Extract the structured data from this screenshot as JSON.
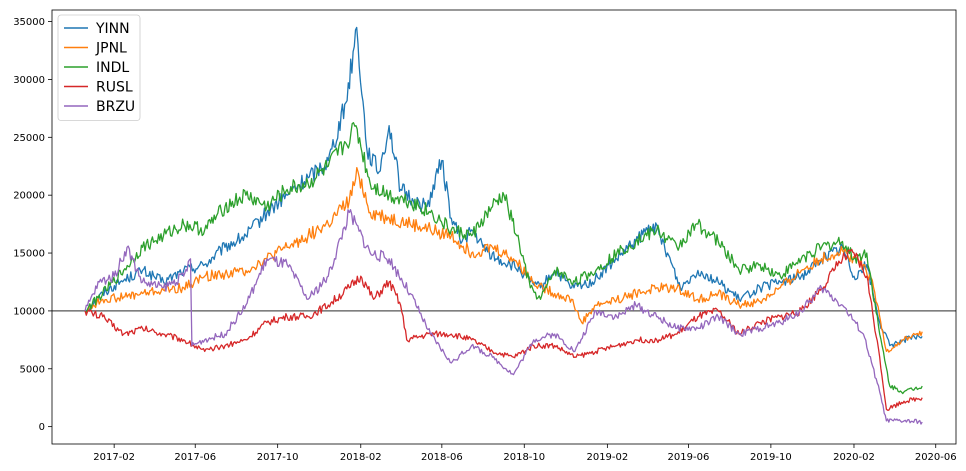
{
  "chart_data": {
    "type": "line",
    "title": "",
    "xlabel": "",
    "ylabel": "",
    "ylim": [
      -1500,
      36000
    ],
    "xlim": [
      "2016-11-01",
      "2020-07-01"
    ],
    "yticks": [
      0,
      5000,
      10000,
      15000,
      20000,
      25000,
      30000,
      35000
    ],
    "xticks": [
      "2017-02",
      "2017-06",
      "2017-10",
      "2018-02",
      "2018-06",
      "2018-10",
      "2019-02",
      "2019-06",
      "2019-10",
      "2020-02",
      "2020-06"
    ],
    "grid": false,
    "legend": "upper left",
    "reference_line": 10000,
    "reference_color": "#555555",
    "series": [
      {
        "name": "YINN",
        "color": "#1f77b4",
        "points": [
          [
            "2016-12-20",
            10000
          ],
          [
            "2017-01-15",
            11500
          ],
          [
            "2017-02-10",
            12500
          ],
          [
            "2017-03-15",
            13500
          ],
          [
            "2017-04-15",
            12500
          ],
          [
            "2017-05-15",
            13500
          ],
          [
            "2017-06-15",
            14000
          ],
          [
            "2017-07-15",
            15500
          ],
          [
            "2017-08-15",
            16500
          ],
          [
            "2017-09-15",
            18500
          ],
          [
            "2017-10-15",
            20000
          ],
          [
            "2017-11-15",
            21500
          ],
          [
            "2017-12-15",
            23000
          ],
          [
            "2018-01-10",
            28000
          ],
          [
            "2018-01-26",
            34500
          ],
          [
            "2018-02-10",
            24000
          ],
          [
            "2018-02-28",
            22000
          ],
          [
            "2018-03-15",
            26000
          ],
          [
            "2018-04-01",
            20500
          ],
          [
            "2018-04-20",
            19500
          ],
          [
            "2018-05-10",
            19000
          ],
          [
            "2018-06-01",
            23000
          ],
          [
            "2018-06-15",
            18000
          ],
          [
            "2018-07-01",
            16000
          ],
          [
            "2018-07-15",
            17000
          ],
          [
            "2018-08-01",
            15500
          ],
          [
            "2018-08-20",
            14500
          ],
          [
            "2018-09-10",
            14000
          ],
          [
            "2018-09-25",
            13500
          ],
          [
            "2018-10-10",
            12500
          ],
          [
            "2018-10-25",
            12000
          ],
          [
            "2018-11-15",
            13500
          ],
          [
            "2018-12-10",
            12000
          ],
          [
            "2019-01-10",
            12500
          ],
          [
            "2019-02-15",
            14500
          ],
          [
            "2019-03-15",
            16000
          ],
          [
            "2019-04-10",
            17500
          ],
          [
            "2019-05-01",
            15000
          ],
          [
            "2019-05-20",
            12000
          ],
          [
            "2019-06-15",
            13500
          ],
          [
            "2019-07-15",
            12500
          ],
          [
            "2019-08-15",
            11000
          ],
          [
            "2019-09-15",
            12000
          ],
          [
            "2019-10-15",
            12500
          ],
          [
            "2019-11-15",
            13000
          ],
          [
            "2019-12-15",
            14500
          ],
          [
            "2020-01-15",
            15500
          ],
          [
            "2020-02-01",
            13000
          ],
          [
            "2020-02-20",
            14000
          ],
          [
            "2020-03-10",
            9000
          ],
          [
            "2020-03-25",
            7000
          ],
          [
            "2020-04-15",
            7500
          ],
          [
            "2020-05-12",
            7800
          ]
        ]
      },
      {
        "name": "JPNL",
        "color": "#ff7f0e",
        "points": [
          [
            "2016-12-20",
            10000
          ],
          [
            "2017-01-15",
            11000
          ],
          [
            "2017-02-15",
            11200
          ],
          [
            "2017-03-15",
            11500
          ],
          [
            "2017-04-15",
            11800
          ],
          [
            "2017-05-15",
            12000
          ],
          [
            "2017-06-15",
            13000
          ],
          [
            "2017-07-15",
            13200
          ],
          [
            "2017-08-15",
            13500
          ],
          [
            "2017-09-15",
            14500
          ],
          [
            "2017-10-15",
            15500
          ],
          [
            "2017-11-15",
            16500
          ],
          [
            "2017-12-15",
            17500
          ],
          [
            "2018-01-15",
            19500
          ],
          [
            "2018-01-28",
            22000
          ],
          [
            "2018-02-15",
            18500
          ],
          [
            "2018-03-15",
            18000
          ],
          [
            "2018-04-15",
            17500
          ],
          [
            "2018-05-15",
            17000
          ],
          [
            "2018-06-15",
            16500
          ],
          [
            "2018-07-15",
            15000
          ],
          [
            "2018-08-15",
            15500
          ],
          [
            "2018-09-15",
            14500
          ],
          [
            "2018-10-15",
            12500
          ],
          [
            "2018-11-15",
            11500
          ],
          [
            "2018-12-10",
            11000
          ],
          [
            "2018-12-25",
            9000
          ],
          [
            "2019-01-15",
            10500
          ],
          [
            "2019-02-15",
            11000
          ],
          [
            "2019-03-15",
            11500
          ],
          [
            "2019-04-15",
            12000
          ],
          [
            "2019-05-15",
            12000
          ],
          [
            "2019-06-15",
            11000
          ],
          [
            "2019-07-15",
            11500
          ],
          [
            "2019-08-15",
            10500
          ],
          [
            "2019-09-15",
            10800
          ],
          [
            "2019-10-15",
            12000
          ],
          [
            "2019-11-15",
            13500
          ],
          [
            "2019-12-15",
            14500
          ],
          [
            "2020-01-15",
            15200
          ],
          [
            "2020-02-15",
            14000
          ],
          [
            "2020-03-01",
            12000
          ],
          [
            "2020-03-20",
            6500
          ],
          [
            "2020-04-15",
            7500
          ],
          [
            "2020-05-12",
            8200
          ]
        ]
      },
      {
        "name": "INDL",
        "color": "#2ca02c",
        "points": [
          [
            "2016-12-20",
            10000
          ],
          [
            "2017-01-15",
            11500
          ],
          [
            "2017-02-15",
            13500
          ],
          [
            "2017-03-15",
            15500
          ],
          [
            "2017-04-15",
            16500
          ],
          [
            "2017-05-15",
            17500
          ],
          [
            "2017-06-15",
            17000
          ],
          [
            "2017-07-15",
            19000
          ],
          [
            "2017-08-15",
            20000
          ],
          [
            "2017-09-15",
            19000
          ],
          [
            "2017-10-15",
            20500
          ],
          [
            "2017-11-15",
            21000
          ],
          [
            "2017-12-15",
            22500
          ],
          [
            "2018-01-10",
            24500
          ],
          [
            "2018-01-25",
            26000
          ],
          [
            "2018-02-15",
            21000
          ],
          [
            "2018-03-15",
            20000
          ],
          [
            "2018-04-15",
            19500
          ],
          [
            "2018-05-15",
            18500
          ],
          [
            "2018-06-15",
            17000
          ],
          [
            "2018-07-15",
            16500
          ],
          [
            "2018-08-15",
            19000
          ],
          [
            "2018-09-01",
            20000
          ],
          [
            "2018-09-20",
            16500
          ],
          [
            "2018-10-10",
            12000
          ],
          [
            "2018-10-25",
            11000
          ],
          [
            "2018-11-15",
            13500
          ],
          [
            "2018-12-15",
            12500
          ],
          [
            "2019-01-15",
            13500
          ],
          [
            "2019-02-15",
            15000
          ],
          [
            "2019-03-15",
            16000
          ],
          [
            "2019-04-15",
            17000
          ],
          [
            "2019-05-15",
            15500
          ],
          [
            "2019-06-15",
            17500
          ],
          [
            "2019-07-15",
            16000
          ],
          [
            "2019-08-15",
            13500
          ],
          [
            "2019-09-15",
            14000
          ],
          [
            "2019-10-15",
            13000
          ],
          [
            "2019-11-15",
            14500
          ],
          [
            "2019-12-15",
            15500
          ],
          [
            "2020-01-15",
            16000
          ],
          [
            "2020-02-01",
            14500
          ],
          [
            "2020-02-20",
            15000
          ],
          [
            "2020-03-10",
            8000
          ],
          [
            "2020-03-25",
            3500
          ],
          [
            "2020-04-15",
            3000
          ],
          [
            "2020-05-12",
            3500
          ]
        ]
      },
      {
        "name": "RUSL",
        "color": "#d62728",
        "points": [
          [
            "2016-12-20",
            10000
          ],
          [
            "2017-01-15",
            9500
          ],
          [
            "2017-02-15",
            8000
          ],
          [
            "2017-03-15",
            8500
          ],
          [
            "2017-04-15",
            8000
          ],
          [
            "2017-05-15",
            7500
          ],
          [
            "2017-06-15",
            6500
          ],
          [
            "2017-07-15",
            7000
          ],
          [
            "2017-08-15",
            7500
          ],
          [
            "2017-09-15",
            9000
          ],
          [
            "2017-10-15",
            9500
          ],
          [
            "2017-11-15",
            9500
          ],
          [
            "2017-12-15",
            10500
          ],
          [
            "2018-01-15",
            12000
          ],
          [
            "2018-02-01",
            13000
          ],
          [
            "2018-02-20",
            11000
          ],
          [
            "2018-03-15",
            12500
          ],
          [
            "2018-04-01",
            10500
          ],
          [
            "2018-04-10",
            7500
          ],
          [
            "2018-05-15",
            8000
          ],
          [
            "2018-06-15",
            8000
          ],
          [
            "2018-07-15",
            7500
          ],
          [
            "2018-08-15",
            6500
          ],
          [
            "2018-09-15",
            6000
          ],
          [
            "2018-10-15",
            7000
          ],
          [
            "2018-11-15",
            7000
          ],
          [
            "2018-12-15",
            6000
          ],
          [
            "2019-01-15",
            6500
          ],
          [
            "2019-02-15",
            7000
          ],
          [
            "2019-03-15",
            7500
          ],
          [
            "2019-04-15",
            7500
          ],
          [
            "2019-05-15",
            8000
          ],
          [
            "2019-06-15",
            9500
          ],
          [
            "2019-07-15",
            10000
          ],
          [
            "2019-08-15",
            8000
          ],
          [
            "2019-09-15",
            9000
          ],
          [
            "2019-10-15",
            9500
          ],
          [
            "2019-11-15",
            10000
          ],
          [
            "2019-12-15",
            12000
          ],
          [
            "2020-01-15",
            14500
          ],
          [
            "2020-02-01",
            15000
          ],
          [
            "2020-02-20",
            13000
          ],
          [
            "2020-03-10",
            6000
          ],
          [
            "2020-03-20",
            1500
          ],
          [
            "2020-04-15",
            2200
          ],
          [
            "2020-05-12",
            2500
          ]
        ]
      },
      {
        "name": "BRZU",
        "color": "#9467bd",
        "points": [
          [
            "2016-12-20",
            10000
          ],
          [
            "2017-01-10",
            12500
          ],
          [
            "2017-02-01",
            13000
          ],
          [
            "2017-02-20",
            15500
          ],
          [
            "2017-03-15",
            12500
          ],
          [
            "2017-04-15",
            12000
          ],
          [
            "2017-05-15",
            13000
          ],
          [
            "2017-05-25",
            14500
          ],
          [
            "2017-05-27",
            7000
          ],
          [
            "2017-06-15",
            7500
          ],
          [
            "2017-07-15",
            8000
          ],
          [
            "2017-08-15",
            10500
          ],
          [
            "2017-09-15",
            14500
          ],
          [
            "2017-10-15",
            14000
          ],
          [
            "2017-11-15",
            11000
          ],
          [
            "2017-12-15",
            13000
          ],
          [
            "2018-01-15",
            18500
          ],
          [
            "2018-02-15",
            15000
          ],
          [
            "2018-03-15",
            14500
          ],
          [
            "2018-04-15",
            11500
          ],
          [
            "2018-05-15",
            8000
          ],
          [
            "2018-06-15",
            5500
          ],
          [
            "2018-07-15",
            7000
          ],
          [
            "2018-08-15",
            6000
          ],
          [
            "2018-09-15",
            4500
          ],
          [
            "2018-10-15",
            7500
          ],
          [
            "2018-11-15",
            8000
          ],
          [
            "2018-12-15",
            6500
          ],
          [
            "2019-01-15",
            10000
          ],
          [
            "2019-02-15",
            9500
          ],
          [
            "2019-03-15",
            10500
          ],
          [
            "2019-04-15",
            9500
          ],
          [
            "2019-05-15",
            8500
          ],
          [
            "2019-06-15",
            8500
          ],
          [
            "2019-07-15",
            9500
          ],
          [
            "2019-08-15",
            8000
          ],
          [
            "2019-09-15",
            8500
          ],
          [
            "2019-10-15",
            9000
          ],
          [
            "2019-11-15",
            10000
          ],
          [
            "2019-12-15",
            12000
          ],
          [
            "2020-01-15",
            10500
          ],
          [
            "2020-02-15",
            8000
          ],
          [
            "2020-03-10",
            3000
          ],
          [
            "2020-03-20",
            500
          ],
          [
            "2020-04-15",
            500
          ],
          [
            "2020-05-12",
            400
          ]
        ]
      }
    ]
  }
}
